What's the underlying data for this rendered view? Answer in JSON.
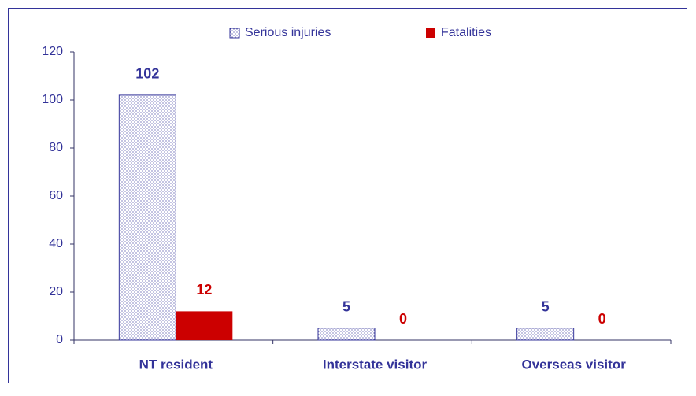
{
  "chart_data": {
    "type": "bar",
    "categories": [
      "NT resident",
      "Interstate visitor",
      "Overseas visitor"
    ],
    "series": [
      {
        "name": "Serious injuries",
        "color": "#333399",
        "pattern": "dots",
        "values": [
          102,
          5,
          5
        ]
      },
      {
        "name": "Fatalities",
        "color": "#cc0000",
        "values": [
          12,
          0,
          0
        ]
      }
    ],
    "ylim": [
      0,
      120
    ],
    "yticks": [
      0,
      20,
      40,
      60,
      80,
      100,
      120
    ],
    "grid": false,
    "legend": "top",
    "data_labels": true
  }
}
